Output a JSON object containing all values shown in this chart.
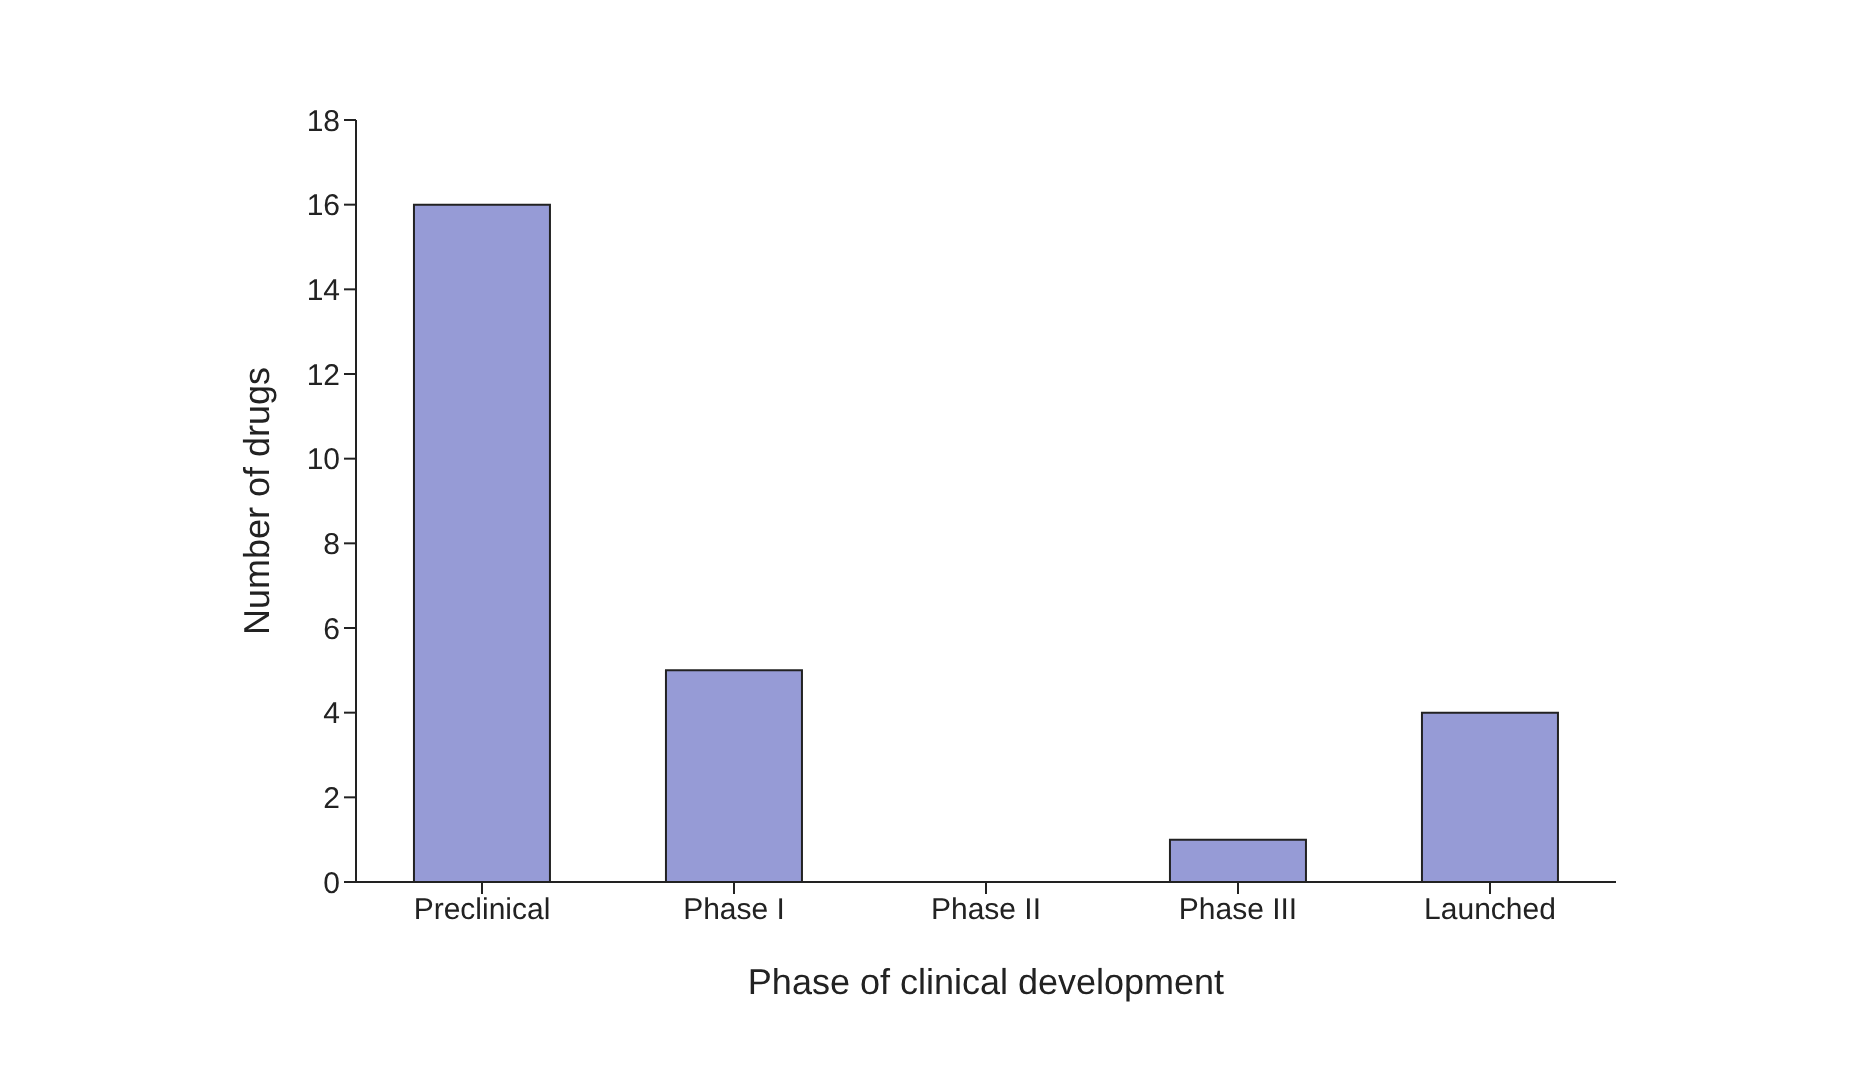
{
  "chart_data": {
    "type": "bar",
    "xlabel": "Phase of clinical development",
    "ylabel": "Number of drugs",
    "categories": [
      "Preclinical",
      "Phase I",
      "Phase II",
      "Phase III",
      "Launched"
    ],
    "values": [
      16,
      5,
      0,
      1,
      4
    ],
    "color": "#969bd6",
    "ylim": [
      0,
      18
    ],
    "yticks": [
      0,
      2,
      4,
      6,
      8,
      10,
      12,
      14,
      16,
      18
    ],
    "grid": false,
    "legend": false
  }
}
